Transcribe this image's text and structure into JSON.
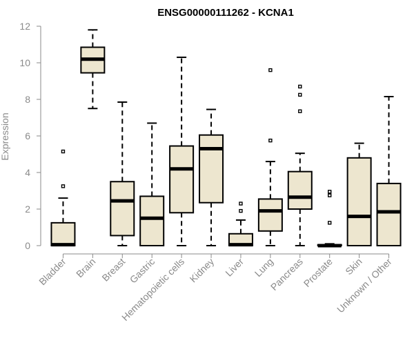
{
  "chart_data": {
    "type": "boxplot",
    "title": "ENSG00000111262 - KCNA1",
    "xlabel": "",
    "ylabel": "Expression",
    "ylim": [
      0,
      12
    ],
    "yticks": [
      0,
      2,
      4,
      6,
      8,
      10,
      12
    ],
    "categories": [
      "Bladder",
      "Brain",
      "Breast",
      "Gastric",
      "Hematopoietic cells",
      "Kidney",
      "Liver",
      "Lung",
      "Pancreas",
      "Prostate",
      "Skin",
      "Unknown / Other"
    ],
    "boxes": [
      {
        "category": "Bladder",
        "whisker_low": 0.0,
        "q1": 0.0,
        "median": 0.05,
        "q3": 1.25,
        "whisker_high": 2.6,
        "outliers": [
          3.25,
          5.15
        ]
      },
      {
        "category": "Brain",
        "whisker_low": 7.5,
        "q1": 9.45,
        "median": 10.2,
        "q3": 10.85,
        "whisker_high": 11.8,
        "outliers": []
      },
      {
        "category": "Breast",
        "whisker_low": 0.0,
        "q1": 0.55,
        "median": 2.45,
        "q3": 3.5,
        "whisker_high": 7.85,
        "outliers": []
      },
      {
        "category": "Gastric",
        "whisker_low": 0.0,
        "q1": 0.0,
        "median": 1.5,
        "q3": 2.7,
        "whisker_high": 6.7,
        "outliers": []
      },
      {
        "category": "Hematopoietic cells",
        "whisker_low": 0.0,
        "q1": 1.8,
        "median": 4.2,
        "q3": 5.45,
        "whisker_high": 10.3,
        "outliers": []
      },
      {
        "category": "Kidney",
        "whisker_low": 0.0,
        "q1": 2.35,
        "median": 5.3,
        "q3": 6.05,
        "whisker_high": 7.45,
        "outliers": []
      },
      {
        "category": "Liver",
        "whisker_low": 0.0,
        "q1": 0.0,
        "median": 0.05,
        "q3": 0.65,
        "whisker_high": 1.4,
        "outliers": [
          1.9,
          2.3
        ]
      },
      {
        "category": "Lung",
        "whisker_low": 0.0,
        "q1": 0.8,
        "median": 1.9,
        "q3": 2.55,
        "whisker_high": 4.6,
        "outliers": [
          5.75,
          9.6
        ]
      },
      {
        "category": "Pancreas",
        "whisker_low": 0.0,
        "q1": 2.0,
        "median": 2.65,
        "q3": 4.05,
        "whisker_high": 5.05,
        "outliers": [
          7.35,
          8.25,
          8.7
        ]
      },
      {
        "category": "Prostate",
        "whisker_low": 0.0,
        "q1": 0.0,
        "median": 0.0,
        "q3": 0.05,
        "whisker_high": 0.1,
        "outliers": [
          1.25,
          2.75,
          2.95
        ]
      },
      {
        "category": "Skin",
        "whisker_low": 0.0,
        "q1": 0.0,
        "median": 1.6,
        "q3": 4.8,
        "whisker_high": 5.6,
        "outliers": []
      },
      {
        "category": "Unknown / Other",
        "whisker_low": 0.0,
        "q1": 0.0,
        "median": 1.85,
        "q3": 3.4,
        "whisker_high": 8.15,
        "outliers": []
      }
    ],
    "box_fill": "#ede6cf",
    "axis_color": "#8a8a8a"
  }
}
